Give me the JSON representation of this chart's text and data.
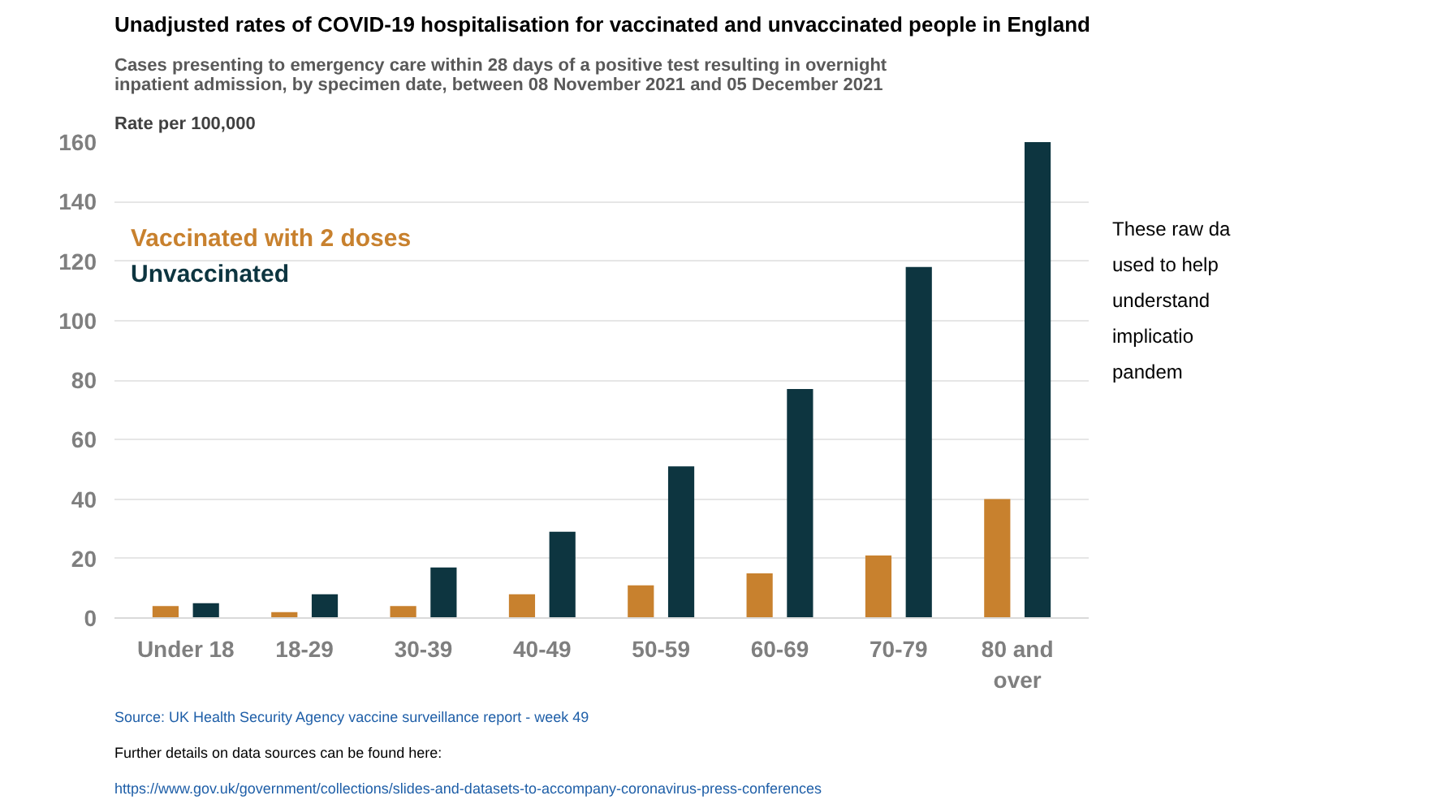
{
  "chart_data": {
    "type": "bar",
    "title": "Unadjusted rates of COVID-19 hospitalisation for vaccinated and unvaccinated people in England",
    "subtitle": "Cases presenting to emergency care within 28 days of a positive test resulting in overnight inpatient admission, by specimen date, between 08 November 2021 and 05 December 2021",
    "ylabel": "Rate per 100,000",
    "categories": [
      "Under 18",
      "18-29",
      "30-39",
      "40-49",
      "50-59",
      "60-69",
      "70-79",
      "80 and over"
    ],
    "series": [
      {
        "name": "Vaccinated with 2 doses",
        "color": "#c8812e",
        "values": [
          4,
          2,
          4,
          8,
          11,
          15,
          21,
          40
        ]
      },
      {
        "name": "Unvaccinated",
        "color": "#0d3540",
        "values": [
          5,
          8,
          17,
          29,
          51,
          77,
          118,
          160
        ]
      }
    ],
    "ylim": [
      0,
      160
    ],
    "yticks": [
      0,
      20,
      40,
      60,
      80,
      100,
      120,
      140,
      160
    ],
    "grid": "y",
    "legend": "center left",
    "annotations": [
      "Source: UK Health Security Agency vaccine surveillance report - week 49",
      "Further details on data sources can be found here:",
      "https://www.gov.uk/government/collections/slides-and-datasets-to-accompany-coronavirus-press-conferences",
      "These raw da",
      "used to help",
      "understand",
      "implicatio",
      "pandem"
    ]
  }
}
